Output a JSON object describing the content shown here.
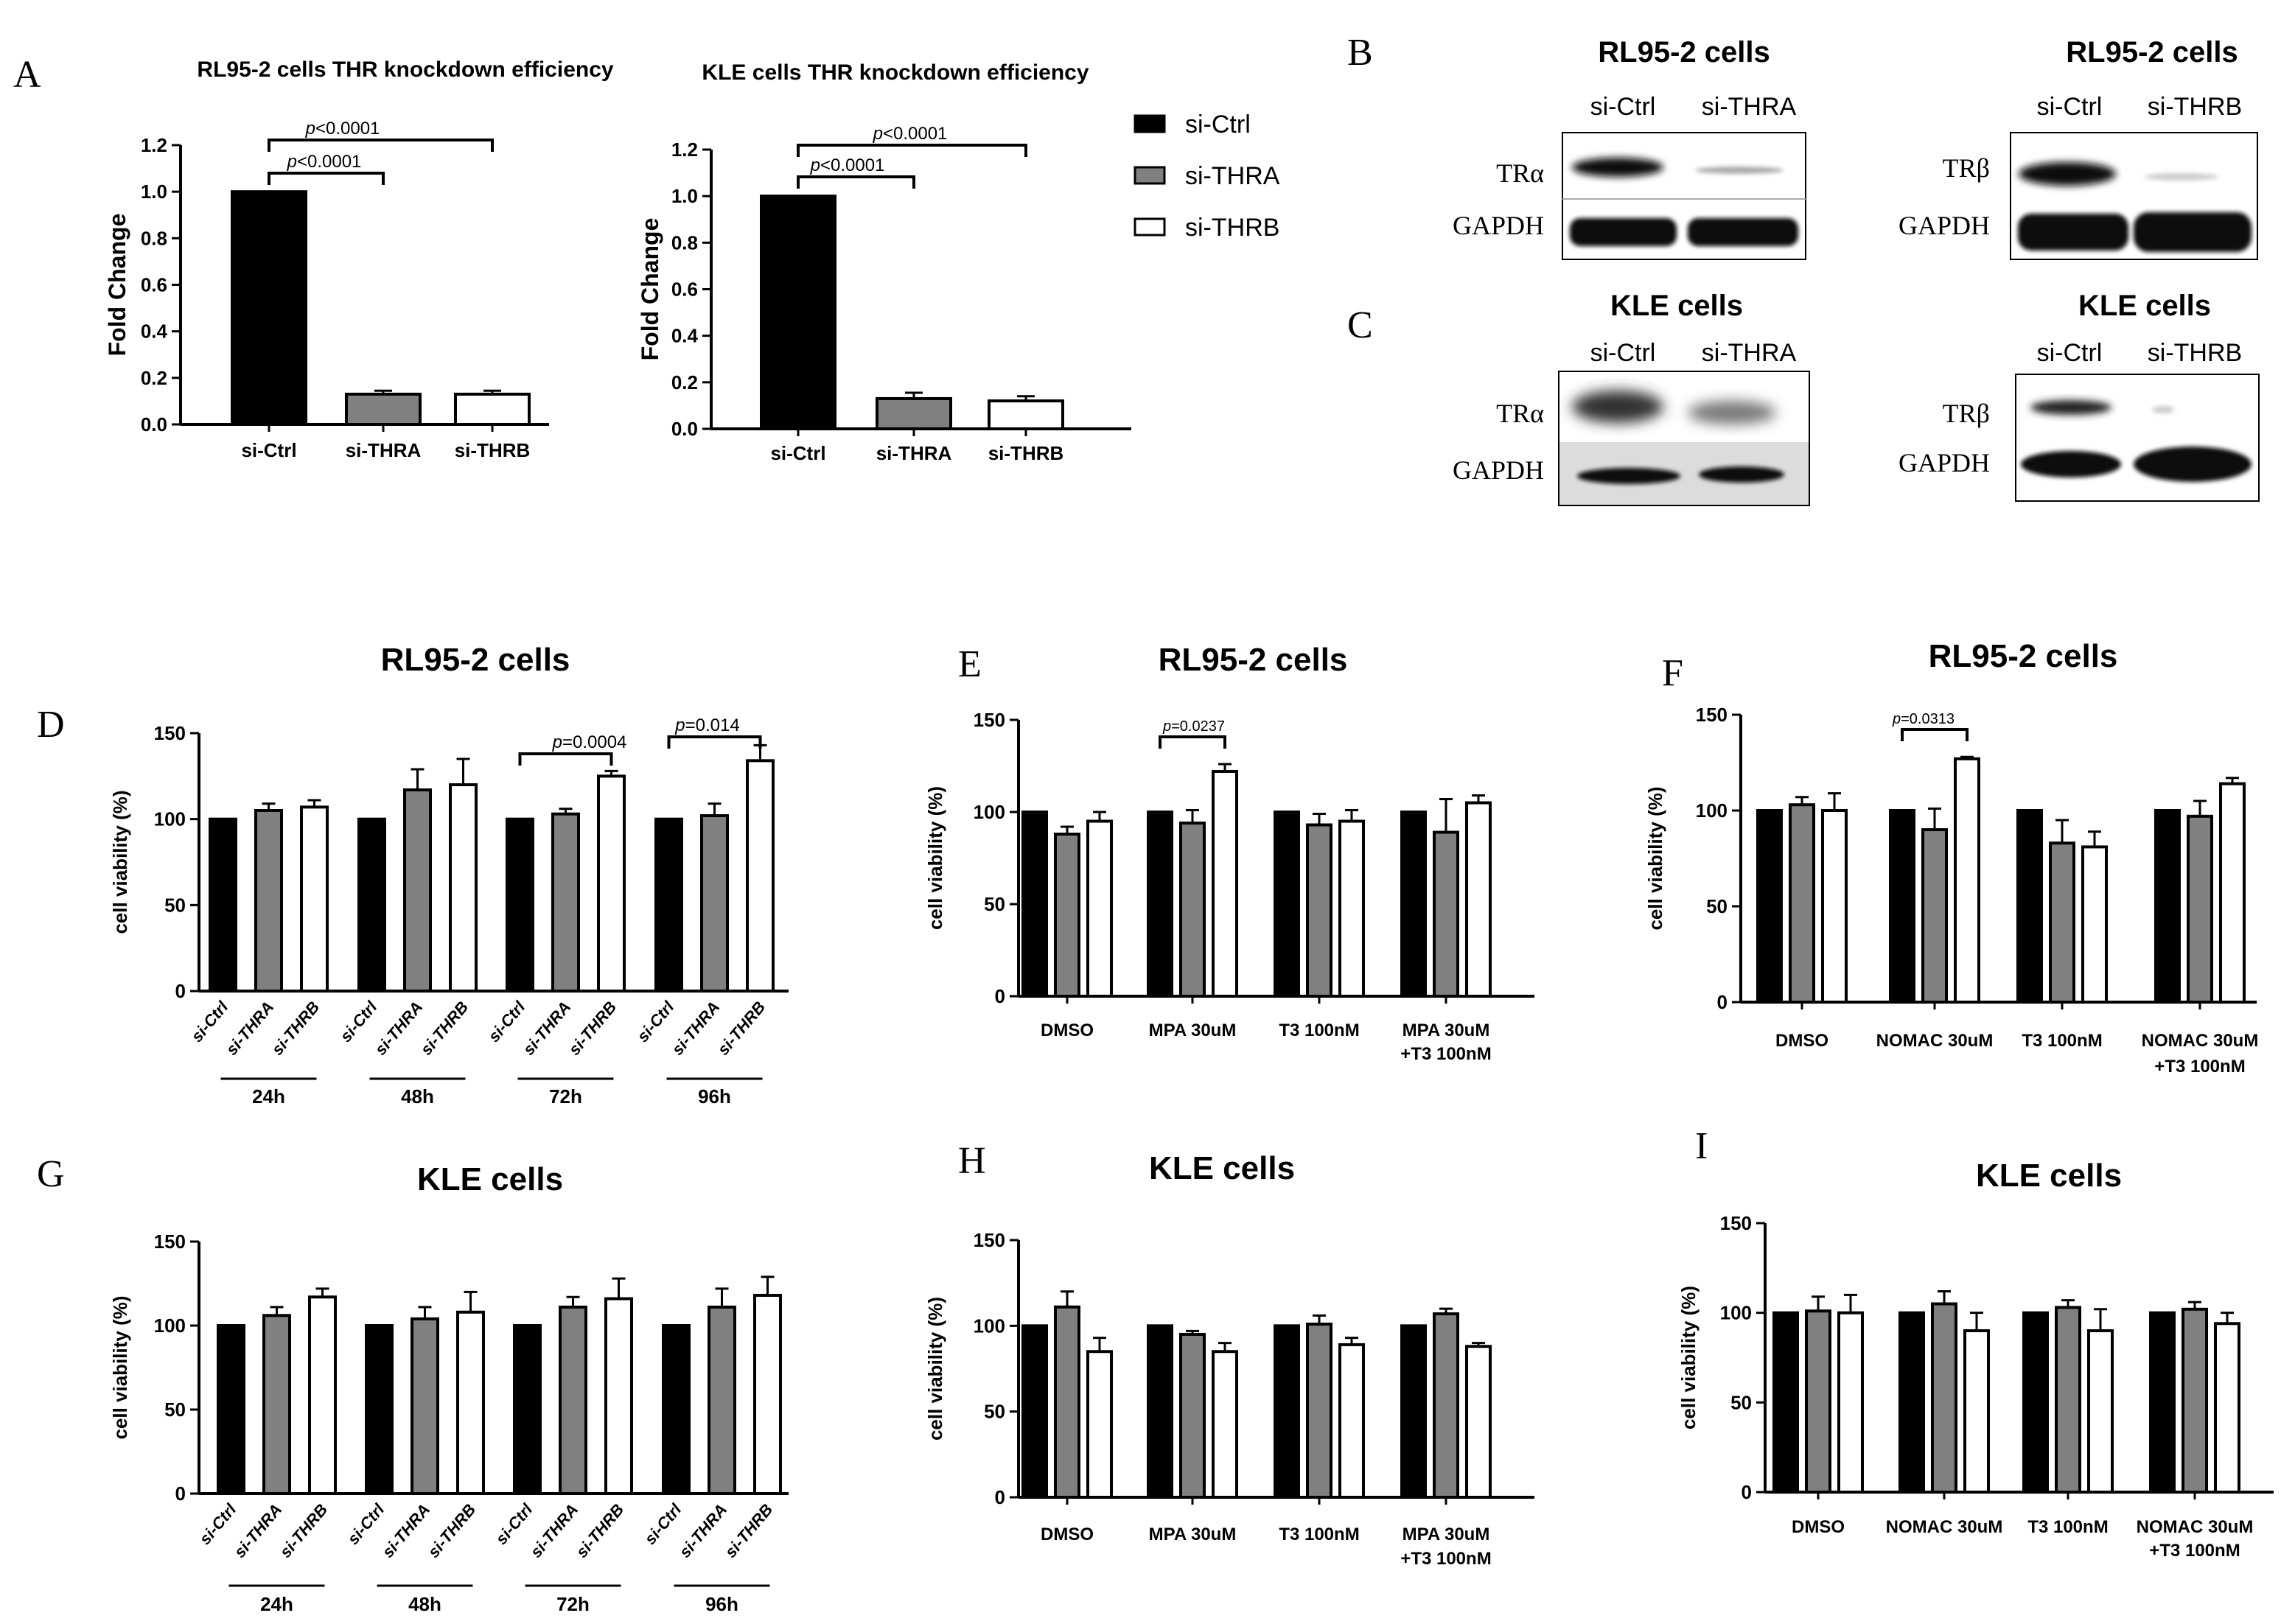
{
  "panel_labels": {
    "A": "A",
    "B": "B",
    "C": "C",
    "D": "D",
    "E": "E",
    "F": "F",
    "G": "G",
    "H": "H",
    "I": "I"
  },
  "legend": {
    "items": [
      {
        "label": "si-Ctrl",
        "color": "#000000"
      },
      {
        "label": "si-THRA",
        "color": "#808080"
      },
      {
        "label": "si-THRB",
        "color": "#ffffff"
      }
    ]
  },
  "western": {
    "RL_THRA": {
      "title": "RL95-2 cells",
      "lane1": "si-Ctrl",
      "lane2": "si-THRA",
      "band1": "TRα",
      "band2": "GAPDH"
    },
    "RL_THRB": {
      "title": "RL95-2 cells",
      "lane1": "si-Ctrl",
      "lane2": "si-THRB",
      "band1": "TRβ",
      "band2": "GAPDH"
    },
    "KLE_THRA": {
      "title": "KLE cells",
      "lane1": "si-Ctrl",
      "lane2": "si-THRA",
      "band1": "TRα",
      "band2": "GAPDH"
    },
    "KLE_THRB": {
      "title": "KLE cells",
      "lane1": "si-Ctrl",
      "lane2": "si-THRB",
      "band1": "TRβ",
      "band2": "GAPDH"
    }
  },
  "chart_data": [
    {
      "id": "A1",
      "type": "bar",
      "title": "RL95-2 cells THR knockdown efficiency",
      "ylabel": "Fold Change",
      "ylim": [
        0,
        1.2
      ],
      "yticks": [
        "0.0",
        "0.2",
        "0.4",
        "0.6",
        "0.8",
        "1.0",
        "1.2"
      ],
      "categories": [
        "si-Ctrl",
        "si-THRA",
        "si-THRB"
      ],
      "values": [
        1.0,
        0.13,
        0.13
      ],
      "errors": [
        0,
        0.015,
        0.015
      ],
      "annotations": [
        {
          "p": "p",
          "text": "<0.0001"
        },
        {
          "p": "p",
          "text": "<0.0001"
        }
      ]
    },
    {
      "id": "A2",
      "type": "bar",
      "title": "KLE cells THR knockdown efficiency",
      "ylabel": "Fold Change",
      "ylim": [
        0,
        1.2
      ],
      "yticks": [
        "0.0",
        "0.2",
        "0.4",
        "0.6",
        "0.8",
        "1.0",
        "1.2"
      ],
      "categories": [
        "si-Ctrl",
        "si-THRA",
        "si-THRB"
      ],
      "values": [
        1.0,
        0.13,
        0.12
      ],
      "errors": [
        0,
        0.025,
        0.02
      ],
      "annotations": [
        {
          "p": "p",
          "text": "<0.0001"
        },
        {
          "p": "p",
          "text": "<0.0001"
        }
      ]
    },
    {
      "id": "D",
      "type": "bar",
      "title": "RL95-2 cells",
      "ylabel": "cell viability (%)",
      "ylim": [
        0,
        150
      ],
      "yticks": [
        "0",
        "50",
        "100",
        "150"
      ],
      "sub_labels": [
        "si-Ctrl",
        "si-THRA",
        "si-THRB"
      ],
      "groups": [
        "24h",
        "48h",
        "72h",
        "96h"
      ],
      "series": [
        {
          "name": "si-Ctrl",
          "values": [
            100,
            100,
            100,
            100
          ],
          "errors": [
            0,
            0,
            0,
            0
          ]
        },
        {
          "name": "si-THRA",
          "values": [
            105,
            117,
            103,
            102
          ],
          "errors": [
            4,
            12,
            3,
            7
          ]
        },
        {
          "name": "si-THRB",
          "values": [
            107,
            120,
            125,
            134
          ],
          "errors": [
            4,
            15,
            3,
            9
          ]
        }
      ],
      "annotations": [
        {
          "p": "p",
          "text": "=0.0004"
        },
        {
          "p": "p",
          "text": "=0.014"
        }
      ]
    },
    {
      "id": "E",
      "type": "bar",
      "title": "RL95-2 cells",
      "ylabel": "cell viability (%)",
      "ylim": [
        0,
        150
      ],
      "yticks": [
        "0",
        "50",
        "100",
        "150"
      ],
      "groups": [
        "DMSO",
        "MPA 30uM",
        "T3 100nM",
        "MPA 30uM"
      ],
      "group_second_line": [
        "",
        "",
        "",
        "+T3 100nM"
      ],
      "series": [
        {
          "name": "si-Ctrl",
          "values": [
            100,
            100,
            100,
            100
          ],
          "errors": [
            0,
            0,
            0,
            0
          ]
        },
        {
          "name": "si-THRA",
          "values": [
            88,
            94,
            93,
            89
          ],
          "errors": [
            4,
            7,
            6,
            18
          ]
        },
        {
          "name": "si-THRB",
          "values": [
            95,
            122,
            95,
            105
          ],
          "errors": [
            5,
            4,
            6,
            4
          ]
        }
      ],
      "annotations": [
        {
          "p": "p",
          "text": "=0.0237"
        }
      ]
    },
    {
      "id": "F",
      "type": "bar",
      "title": "RL95-2 cells",
      "ylabel": "cell viability (%)",
      "ylim": [
        0,
        150
      ],
      "yticks": [
        "0",
        "50",
        "100",
        "150"
      ],
      "groups": [
        "DMSO",
        "NOMAC 30uM",
        "T3 100nM",
        "NOMAC 30uM"
      ],
      "group_second_line": [
        "",
        "",
        "",
        "+T3 100nM"
      ],
      "series": [
        {
          "name": "si-Ctrl",
          "values": [
            100,
            100,
            100,
            100
          ],
          "errors": [
            0,
            0,
            0,
            0
          ]
        },
        {
          "name": "si-THRA",
          "values": [
            103,
            90,
            83,
            97
          ],
          "errors": [
            4,
            11,
            12,
            8
          ]
        },
        {
          "name": "si-THRB",
          "values": [
            100,
            127,
            81,
            114
          ],
          "errors": [
            9,
            1,
            8,
            3
          ]
        }
      ],
      "annotations": [
        {
          "p": "p",
          "text": "=0.0313"
        }
      ]
    },
    {
      "id": "G",
      "type": "bar",
      "title": "KLE cells",
      "ylabel": "cell viability (%)",
      "ylim": [
        0,
        150
      ],
      "yticks": [
        "0",
        "50",
        "100",
        "150"
      ],
      "sub_labels": [
        "si-Ctrl",
        "si-THRA",
        "si-THRB"
      ],
      "groups": [
        "24h",
        "48h",
        "72h",
        "96h"
      ],
      "series": [
        {
          "name": "si-Ctrl",
          "values": [
            100,
            100,
            100,
            100
          ],
          "errors": [
            0,
            0,
            0,
            0
          ]
        },
        {
          "name": "si-THRA",
          "values": [
            106,
            104,
            111,
            111
          ],
          "errors": [
            5,
            7,
            6,
            11
          ]
        },
        {
          "name": "si-THRB",
          "values": [
            117,
            108,
            116,
            118
          ],
          "errors": [
            5,
            12,
            12,
            11
          ]
        }
      ],
      "annotations": []
    },
    {
      "id": "H",
      "type": "bar",
      "title": "KLE cells",
      "ylabel": "cell viability (%)",
      "ylim": [
        0,
        150
      ],
      "yticks": [
        "0",
        "50",
        "100",
        "150"
      ],
      "groups": [
        "DMSO",
        "MPA 30uM",
        "T3 100nM",
        "MPA 30uM"
      ],
      "group_second_line": [
        "",
        "",
        "",
        "+T3 100nM"
      ],
      "series": [
        {
          "name": "si-Ctrl",
          "values": [
            100,
            100,
            100,
            100
          ],
          "errors": [
            0,
            0,
            0,
            0
          ]
        },
        {
          "name": "si-THRA",
          "values": [
            111,
            95,
            101,
            107
          ],
          "errors": [
            9,
            2,
            5,
            3
          ]
        },
        {
          "name": "si-THRB",
          "values": [
            85,
            85,
            89,
            88
          ],
          "errors": [
            8,
            5,
            4,
            2
          ]
        }
      ],
      "annotations": []
    },
    {
      "id": "I",
      "type": "bar",
      "title": "KLE cells",
      "ylabel": "cell viability (%)",
      "ylim": [
        0,
        150
      ],
      "yticks": [
        "0",
        "50",
        "100",
        "150"
      ],
      "groups": [
        "DMSO",
        "NOMAC 30uM",
        "T3 100nM",
        "NOMAC 30uM"
      ],
      "group_second_line": [
        "",
        "",
        "",
        "+T3 100nM"
      ],
      "series": [
        {
          "name": "si-Ctrl",
          "values": [
            100,
            100,
            100,
            100
          ],
          "errors": [
            0,
            0,
            0,
            0
          ]
        },
        {
          "name": "si-THRA",
          "values": [
            101,
            105,
            103,
            102
          ],
          "errors": [
            8,
            7,
            4,
            4
          ]
        },
        {
          "name": "si-THRB",
          "values": [
            100,
            90,
            90,
            94
          ],
          "errors": [
            10,
            10,
            12,
            6
          ]
        }
      ],
      "annotations": []
    }
  ]
}
